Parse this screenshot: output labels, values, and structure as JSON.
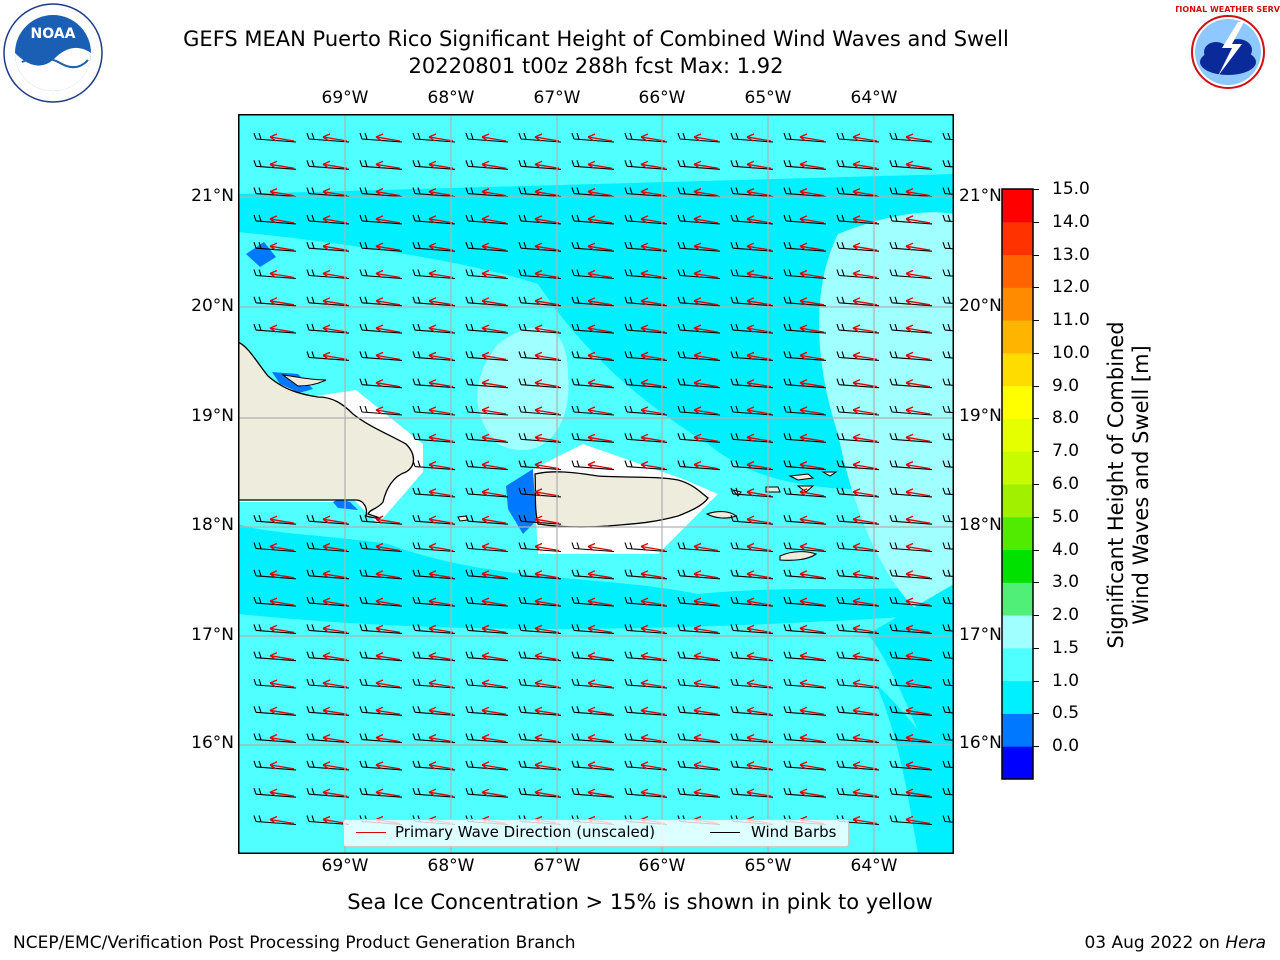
{
  "title_line1": "GEFS MEAN Puerto Rico Significant Height of Combined Wind Waves and Swell",
  "title_line2": "20220801 t00z 288h fcst   Max: 1.92",
  "logos": {
    "left": "noaa-logo",
    "right": "nws-logo",
    "left_text": "NOAA",
    "right_text": "NATIONAL WEATHER SERVICE"
  },
  "lon_labels": [
    "69°W",
    "68°W",
    "67°W",
    "66°W",
    "65°W",
    "64°W"
  ],
  "lat_labels": [
    "21°N",
    "20°N",
    "19°N",
    "18°N",
    "17°N",
    "16°N"
  ],
  "colorbar": {
    "label_line1": "Significant Height of Combined",
    "label_line2": "Wind Waves and Swell [m]",
    "ticks": [
      "15.0",
      "14.0",
      "13.0",
      "12.0",
      "11.0",
      "10.0",
      "9.0",
      "8.0",
      "7.0",
      "6.0",
      "5.0",
      "4.0",
      "3.0",
      "2.0",
      "1.5",
      "1.0",
      "0.5",
      "0.0"
    ],
    "colors": [
      "#0000ff",
      "#0078ff",
      "#00f0ff",
      "#50ffff",
      "#a0ffff",
      "#50f078",
      "#00e100",
      "#50eb00",
      "#a0f000",
      "#c8fa00",
      "#e6ff00",
      "#ffff00",
      "#ffdc00",
      "#ffb400",
      "#ff8c00",
      "#ff6400",
      "#ff3200",
      "#ff0000"
    ]
  },
  "legend": {
    "wave_label": "Primary Wave Direction (unscaled)",
    "barb_label": "Wind Barbs",
    "wave_color": "#e00000",
    "barb_color": "#000000"
  },
  "note": "Sea Ice Concentration > 15% is shown in pink to yellow",
  "footer_left": "NCEP/EMC/Verification Post Processing Product Generation Branch",
  "footer_date": "03 Aug 2022 on ",
  "footer_machine": "Hera",
  "colors": {
    "sea_base": "#00f0ff",
    "sea_light": "#50ffff",
    "sea_lighter": "#a0ffff",
    "land": "#eeecdc",
    "grid": "#b0b0b0"
  }
}
